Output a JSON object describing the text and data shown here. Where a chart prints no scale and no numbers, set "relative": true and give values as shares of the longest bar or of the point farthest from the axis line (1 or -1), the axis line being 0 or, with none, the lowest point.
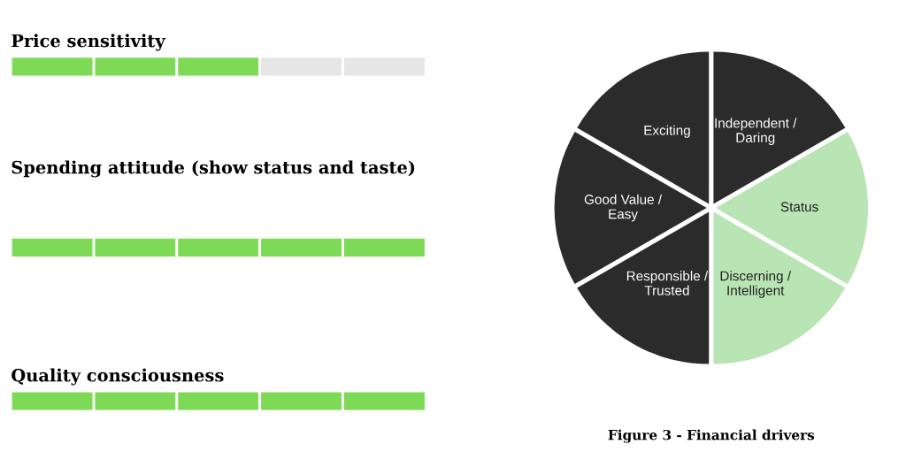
{
  "chart_data": [
    {
      "type": "bar",
      "title": "Price sensitivity",
      "orientation": "horizontal",
      "stacked": true,
      "relative": true,
      "categories": [
        null
      ],
      "series": [
        {
          "color": "#7ed957",
          "values": [
            0.2
          ]
        },
        {
          "color": "#7ed957",
          "values": [
            0.2
          ]
        },
        {
          "color": "#7ed957",
          "values": [
            0.2
          ]
        },
        {
          "color": "#e6e6e6",
          "values": [
            0.2
          ]
        },
        {
          "color": "#e6e6e6",
          "values": [
            0.2
          ]
        }
      ]
    },
    {
      "type": "bar",
      "title": "Spending attitude (show status and taste)",
      "orientation": "horizontal",
      "stacked": true,
      "relative": true,
      "categories": [
        null
      ],
      "series": [
        {
          "color": "#7ed957",
          "values": [
            0.2
          ]
        },
        {
          "color": "#7ed957",
          "values": [
            0.2
          ]
        },
        {
          "color": "#7ed957",
          "values": [
            0.2
          ]
        },
        {
          "color": "#7ed957",
          "values": [
            0.2
          ]
        },
        {
          "color": "#7ed957",
          "values": [
            0.2
          ]
        }
      ]
    },
    {
      "type": "bar",
      "title": "Quality consciousness",
      "orientation": "horizontal",
      "stacked": true,
      "relative": true,
      "categories": [
        null
      ],
      "series": [
        {
          "color": "#7ed957",
          "values": [
            0.2
          ]
        },
        {
          "color": "#7ed957",
          "values": [
            0.2
          ]
        },
        {
          "color": "#7ed957",
          "values": [
            0.2
          ]
        },
        {
          "color": "#7ed957",
          "values": [
            0.2
          ]
        },
        {
          "color": "#7ed957",
          "values": [
            0.2
          ]
        }
      ]
    },
    {
      "type": "pie",
      "categories": [
        "Independent / Daring",
        "Status",
        "Discerning / Intelligent",
        "Responsible / Trusted",
        "Good Value / Easy",
        "Exciting"
      ],
      "values": [
        16.67,
        16.67,
        16.66,
        16.67,
        16.67,
        16.66
      ],
      "colors": [
        "#2b2b2b",
        "#b9e4b4",
        "#b9e4b4",
        "#2b2b2b",
        "#2b2b2b",
        "#2b2b2b"
      ],
      "annotations": [
        "Figure 3 - Financial drivers"
      ]
    }
  ]
}
